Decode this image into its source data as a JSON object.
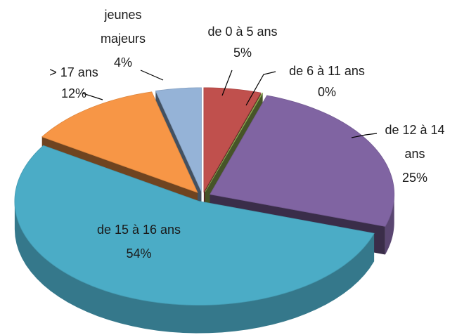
{
  "chart_data": {
    "type": "pie3d",
    "categories": [
      "de 0 à 5 ans",
      "de 6 à 11 ans",
      "de 12 à 14 ans",
      "de 15 à 16 ans",
      "> 17 ans",
      "jeunes majeurs"
    ],
    "values": [
      5,
      0,
      25,
      54,
      12,
      4
    ],
    "value_labels": [
      "5%",
      "0%",
      "25%",
      "54%",
      "12%",
      "4%"
    ],
    "colors": [
      "#c0504d",
      "#9bbb59",
      "#8064a2",
      "#4bacc6",
      "#f79646",
      "#95b3d7"
    ]
  }
}
